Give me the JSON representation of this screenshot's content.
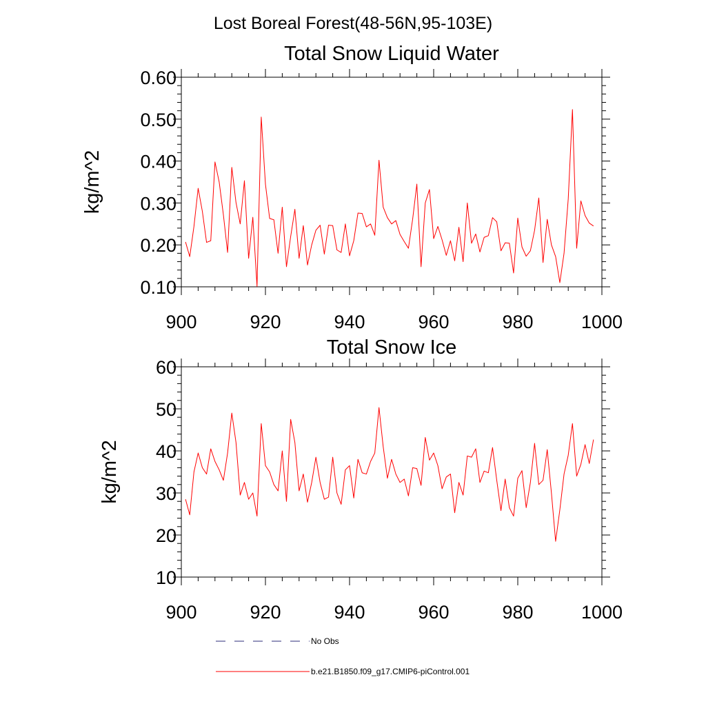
{
  "figure_title": "Lost Boreal Forest(48-56N,95-103E)",
  "chart_data": [
    {
      "type": "line",
      "title": "Total Snow Liquid Water",
      "xlabel": "",
      "ylabel": "kg/m^2",
      "xlim": [
        900,
        1000
      ],
      "ylim": [
        0.1,
        0.6
      ],
      "x_ticks": [
        900,
        920,
        940,
        960,
        980,
        1000
      ],
      "x_tick_labels": [
        "900",
        "920",
        "940",
        "960",
        "980",
        "1000"
      ],
      "y_ticks": [
        0.1,
        0.2,
        0.3,
        0.4,
        0.5,
        0.6
      ],
      "y_tick_labels": [
        "0.10",
        "0.20",
        "0.30",
        "0.40",
        "0.50",
        "0.60"
      ],
      "x_start": 901,
      "series": [
        {
          "name": "b.e21.B1850.f09_g17.CMIP6-piControl.001",
          "color": "#ff0000",
          "values": [
            0.207,
            0.172,
            0.244,
            0.335,
            0.28,
            0.206,
            0.21,
            0.398,
            0.35,
            0.272,
            0.182,
            0.385,
            0.301,
            0.25,
            0.353,
            0.168,
            0.266,
            0.101,
            0.505,
            0.345,
            0.263,
            0.26,
            0.18,
            0.29,
            0.148,
            0.22,
            0.285,
            0.168,
            0.246,
            0.152,
            0.2,
            0.235,
            0.247,
            0.178,
            0.247,
            0.246,
            0.188,
            0.182,
            0.25,
            0.174,
            0.21,
            0.276,
            0.275,
            0.243,
            0.25,
            0.223,
            0.402,
            0.29,
            0.265,
            0.25,
            0.258,
            0.225,
            0.208,
            0.192,
            0.261,
            0.345,
            0.148,
            0.3,
            0.332,
            0.215,
            0.244,
            0.212,
            0.175,
            0.21,
            0.162,
            0.242,
            0.16,
            0.3,
            0.204,
            0.226,
            0.183,
            0.218,
            0.222,
            0.265,
            0.255,
            0.186,
            0.205,
            0.204,
            0.133,
            0.264,
            0.195,
            0.173,
            0.186,
            0.235,
            0.312,
            0.158,
            0.261,
            0.2,
            0.172,
            0.11,
            0.18,
            0.31,
            0.523,
            0.192,
            0.305,
            0.27,
            0.252,
            0.245
          ]
        }
      ]
    },
    {
      "type": "line",
      "title": "Total Snow Ice",
      "xlabel": "",
      "ylabel": "kg/m^2",
      "xlim": [
        900,
        1000
      ],
      "ylim": [
        10,
        60
      ],
      "x_ticks": [
        900,
        920,
        940,
        960,
        980,
        1000
      ],
      "x_tick_labels": [
        "900",
        "920",
        "940",
        "960",
        "980",
        "1000"
      ],
      "y_ticks": [
        10,
        20,
        30,
        40,
        50,
        60
      ],
      "y_tick_labels": [
        "10",
        "20",
        "30",
        "40",
        "50",
        "60"
      ],
      "x_start": 901,
      "series": [
        {
          "name": "b.e21.B1850.f09_g17.CMIP6-piControl.001",
          "color": "#ff0000",
          "values": [
            28.5,
            24.8,
            35.0,
            39.5,
            36.0,
            34.5,
            40.5,
            37.5,
            35.5,
            33.0,
            39.5,
            49.0,
            42.0,
            29.5,
            32.5,
            28.5,
            30.0,
            24.5,
            46.5,
            36.5,
            35.0,
            32.0,
            30.5,
            40.0,
            28.0,
            47.5,
            42.0,
            30.5,
            34.5,
            27.8,
            32.5,
            38.5,
            32.5,
            28.5,
            29.0,
            38.5,
            30.0,
            27.3,
            35.5,
            36.5,
            28.8,
            38.0,
            34.8,
            34.5,
            37.5,
            39.5,
            50.3,
            41.0,
            33.5,
            38.0,
            34.5,
            32.5,
            33.3,
            29.3,
            36.0,
            35.8,
            31.8,
            43.2,
            37.8,
            39.5,
            36.5,
            31.0,
            33.8,
            34.5,
            25.3,
            32.5,
            29.5,
            38.8,
            38.5,
            40.5,
            32.5,
            35.2,
            34.8,
            40.8,
            33.0,
            25.8,
            33.3,
            26.5,
            24.5,
            33.5,
            35.3,
            26.5,
            32.5,
            41.8,
            32.0,
            33.0,
            40.3,
            30.0,
            18.5,
            26.0,
            34.5,
            39.0,
            46.5,
            34.0,
            36.8,
            41.5,
            37.0,
            42.7
          ]
        }
      ]
    }
  ],
  "legend": [
    {
      "label": "No Obs",
      "color": "#2b2b7a",
      "style": "dashed"
    },
    {
      "label": "b.e21.B1850.f09_g17.CMIP6-piControl.001",
      "color": "#ff0000",
      "style": "solid"
    }
  ]
}
